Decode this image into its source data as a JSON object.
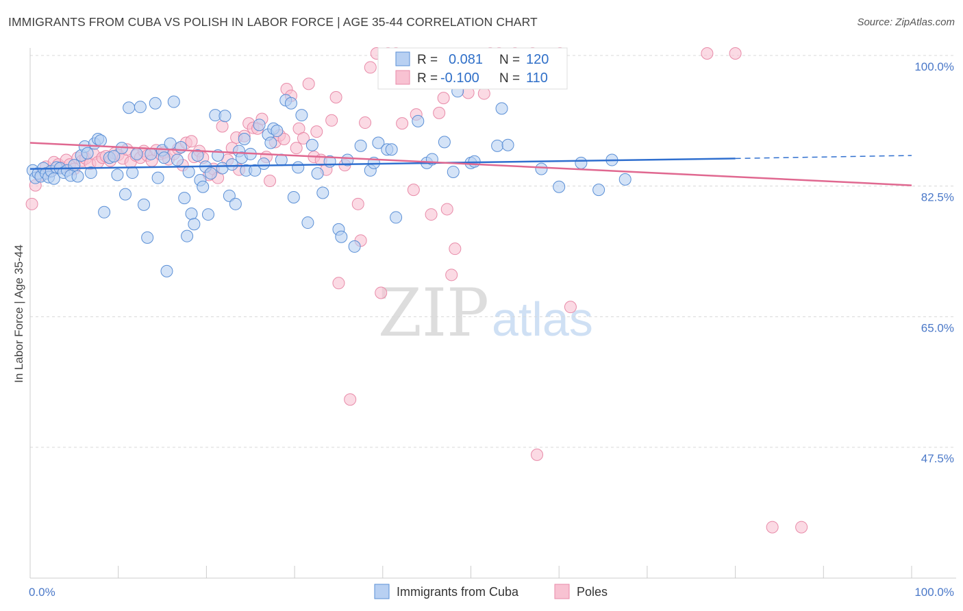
{
  "title": "IMMIGRANTS FROM CUBA VS POLISH IN LABOR FORCE | AGE 35-44 CORRELATION CHART",
  "source": "Source: ZipAtlas.com",
  "watermark": {
    "zip": "ZIP",
    "atlas": "atlas"
  },
  "colors": {
    "cuba_fill": "#b8d0f2",
    "cuba_stroke": "#5a8fd6",
    "cuba_line": "#2f6fcf",
    "poles_fill": "#f8c2d2",
    "poles_stroke": "#e88aa8",
    "poles_line": "#e06890",
    "grid": "#d8d8d8",
    "tick_label": "#4a78c8"
  },
  "chart_data": {
    "type": "scatter",
    "title": "IMMIGRANTS FROM CUBA VS POLISH IN LABOR FORCE | AGE 35-44 CORRELATION CHART",
    "xlabel": "",
    "ylabel": "In Labor Force | Age 35-44",
    "xlim": [
      0,
      100
    ],
    "ylim": [
      30,
      102
    ],
    "x_tick_labels": [
      "0.0%",
      "100.0%"
    ],
    "y_ticks": [
      100.0,
      82.5,
      65.0,
      47.5
    ],
    "y_tick_labels": [
      "100.0%",
      "82.5%",
      "65.0%",
      "47.5%"
    ],
    "grid": true,
    "legend_position": "top-center",
    "legend": {
      "rows": [
        {
          "r_label": "R =",
          "r_value": "0.081",
          "n_label": "N =",
          "n_value": "120"
        },
        {
          "r_label": "R =",
          "r_value": "-0.100",
          "n_label": "N =",
          "n_value": "110"
        }
      ]
    },
    "series": [
      {
        "name": "Immigrants from Cuba",
        "r": 0.081,
        "n": 120,
        "trend": {
          "x": [
            0,
            80
          ],
          "y": [
            84.8,
            86.2
          ],
          "dashed_to": [
            100,
            86.6
          ]
        },
        "points": [
          [
            0.3,
            84.6
          ],
          [
            0.6,
            83.6
          ],
          [
            0.9,
            84.2
          ],
          [
            1.2,
            83.8
          ],
          [
            1.5,
            84.9
          ],
          [
            1.8,
            84.2
          ],
          [
            2.1,
            83.7
          ],
          [
            2.4,
            84.5
          ],
          [
            2.7,
            83.5
          ],
          [
            3.0,
            85.0
          ],
          [
            3.4,
            84.9
          ],
          [
            3.8,
            84.3
          ],
          [
            4.2,
            84.6
          ],
          [
            4.6,
            83.9
          ],
          [
            5.0,
            85.3
          ],
          [
            5.4,
            83.8
          ],
          [
            5.8,
            86.6
          ],
          [
            6.2,
            87.8
          ],
          [
            6.5,
            86.9
          ],
          [
            6.9,
            84.3
          ],
          [
            7.3,
            88.2
          ],
          [
            7.7,
            88.8
          ],
          [
            8.0,
            88.6
          ],
          [
            8.4,
            79.0
          ],
          [
            9.0,
            86.3
          ],
          [
            9.5,
            86.5
          ],
          [
            9.9,
            84.0
          ],
          [
            10.4,
            87.6
          ],
          [
            10.8,
            81.4
          ],
          [
            11.2,
            93.0
          ],
          [
            11.6,
            84.3
          ],
          [
            12.1,
            86.8
          ],
          [
            12.5,
            93.1
          ],
          [
            12.9,
            80.0
          ],
          [
            13.3,
            75.6
          ],
          [
            13.7,
            86.8
          ],
          [
            14.2,
            93.6
          ],
          [
            14.5,
            83.6
          ],
          [
            15.0,
            87.3
          ],
          [
            15.2,
            86.3
          ],
          [
            15.5,
            71.1
          ],
          [
            15.9,
            88.2
          ],
          [
            16.3,
            93.8
          ],
          [
            16.7,
            86.0
          ],
          [
            17.1,
            87.7
          ],
          [
            17.5,
            80.9
          ],
          [
            17.8,
            75.8
          ],
          [
            18.0,
            84.4
          ],
          [
            18.3,
            78.8
          ],
          [
            18.6,
            77.4
          ],
          [
            19.0,
            86.6
          ],
          [
            19.3,
            83.3
          ],
          [
            19.6,
            82.4
          ],
          [
            19.9,
            85.1
          ],
          [
            20.2,
            78.7
          ],
          [
            20.5,
            84.2
          ],
          [
            21.0,
            92.0
          ],
          [
            21.3,
            86.6
          ],
          [
            21.8,
            84.9
          ],
          [
            22.1,
            91.9
          ],
          [
            22.6,
            81.2
          ],
          [
            22.9,
            85.4
          ],
          [
            23.3,
            80.1
          ],
          [
            23.7,
            87.2
          ],
          [
            24.0,
            86.3
          ],
          [
            24.3,
            88.8
          ],
          [
            24.5,
            84.6
          ],
          [
            25.0,
            86.8
          ],
          [
            25.5,
            84.6
          ],
          [
            26.0,
            90.7
          ],
          [
            26.5,
            85.5
          ],
          [
            27.0,
            89.4
          ],
          [
            27.3,
            88.3
          ],
          [
            27.6,
            90.2
          ],
          [
            28.0,
            89.9
          ],
          [
            28.5,
            86.0
          ],
          [
            29.0,
            94.0
          ],
          [
            29.6,
            93.6
          ],
          [
            29.9,
            81.0
          ],
          [
            30.4,
            85.0
          ],
          [
            30.8,
            92.0
          ],
          [
            31.5,
            77.6
          ],
          [
            32.0,
            88.0
          ],
          [
            32.6,
            84.2
          ],
          [
            33.2,
            81.6
          ],
          [
            34.0,
            85.8
          ],
          [
            35.0,
            76.7
          ],
          [
            35.3,
            75.7
          ],
          [
            36.0,
            86.0
          ],
          [
            36.8,
            74.4
          ],
          [
            37.5,
            87.9
          ],
          [
            38.6,
            84.6
          ],
          [
            39.0,
            85.6
          ],
          [
            39.5,
            88.3
          ],
          [
            40.5,
            87.4
          ],
          [
            41.0,
            87.4
          ],
          [
            41.5,
            78.3
          ],
          [
            44.0,
            91.2
          ],
          [
            45.0,
            85.6
          ],
          [
            45.6,
            86.1
          ],
          [
            47.0,
            88.4
          ],
          [
            48.0,
            84.4
          ],
          [
            48.5,
            95.2
          ],
          [
            50.0,
            85.6
          ],
          [
            50.4,
            85.8
          ],
          [
            53.0,
            87.9
          ],
          [
            53.5,
            92.9
          ],
          [
            54.2,
            88.0
          ],
          [
            58.0,
            84.8
          ],
          [
            60.0,
            82.4
          ],
          [
            62.5,
            85.6
          ],
          [
            64.5,
            82.0
          ],
          [
            66.0,
            86.0
          ],
          [
            67.5,
            83.4
          ]
        ]
      },
      {
        "name": "Poles",
        "r": -0.1,
        "n": 110,
        "trend": {
          "x": [
            0,
            100
          ],
          "y": [
            88.3,
            82.6
          ]
        },
        "points": [
          [
            0.2,
            80.1
          ],
          [
            0.6,
            82.6
          ],
          [
            1.2,
            84.0
          ],
          [
            1.8,
            85.1
          ],
          [
            2.3,
            84.5
          ],
          [
            2.7,
            85.7
          ],
          [
            3.2,
            85.4
          ],
          [
            3.6,
            85.0
          ],
          [
            4.1,
            86.0
          ],
          [
            4.5,
            85.4
          ],
          [
            5.0,
            84.8
          ],
          [
            5.4,
            86.3
          ],
          [
            5.9,
            85.9
          ],
          [
            6.3,
            86.2
          ],
          [
            6.8,
            85.5
          ],
          [
            7.2,
            86.8
          ],
          [
            7.7,
            85.7
          ],
          [
            8.2,
            86.3
          ],
          [
            8.6,
            86.5
          ],
          [
            9.1,
            85.9
          ],
          [
            9.6,
            86.9
          ],
          [
            10.0,
            86.7
          ],
          [
            10.5,
            86.2
          ],
          [
            11.0,
            87.4
          ],
          [
            11.4,
            85.7
          ],
          [
            12.0,
            86.6
          ],
          [
            12.5,
            86.3
          ],
          [
            12.9,
            87.2
          ],
          [
            13.3,
            86.6
          ],
          [
            13.8,
            85.9
          ],
          [
            14.3,
            87.3
          ],
          [
            14.8,
            86.8
          ],
          [
            15.2,
            87.0
          ],
          [
            15.7,
            86.1
          ],
          [
            16.3,
            86.8
          ],
          [
            16.8,
            87.5
          ],
          [
            17.3,
            85.3
          ],
          [
            17.7,
            88.3
          ],
          [
            18.3,
            88.5
          ],
          [
            18.6,
            86.4
          ],
          [
            19.2,
            87.2
          ],
          [
            19.6,
            86.3
          ],
          [
            20.3,
            84.0
          ],
          [
            20.8,
            84.8
          ],
          [
            21.3,
            83.6
          ],
          [
            21.8,
            90.5
          ],
          [
            22.4,
            86.0
          ],
          [
            22.9,
            87.6
          ],
          [
            23.4,
            89.0
          ],
          [
            23.7,
            84.7
          ],
          [
            24.3,
            89.2
          ],
          [
            24.8,
            90.9
          ],
          [
            25.3,
            90.3
          ],
          [
            25.8,
            90.2
          ],
          [
            26.3,
            91.5
          ],
          [
            26.8,
            86.4
          ],
          [
            27.2,
            83.2
          ],
          [
            27.8,
            88.4
          ],
          [
            28.3,
            89.3
          ],
          [
            28.8,
            88.8
          ],
          [
            29.1,
            95.5
          ],
          [
            29.6,
            94.6
          ],
          [
            30.2,
            87.6
          ],
          [
            30.5,
            90.2
          ],
          [
            31.0,
            88.9
          ],
          [
            31.6,
            96.2
          ],
          [
            32.2,
            86.4
          ],
          [
            32.5,
            89.8
          ],
          [
            33.0,
            86.0
          ],
          [
            33.6,
            84.7
          ],
          [
            34.2,
            91.3
          ],
          [
            34.7,
            94.4
          ],
          [
            35.0,
            69.5
          ],
          [
            35.7,
            85.3
          ],
          [
            36.3,
            53.9
          ],
          [
            37.2,
            80.1
          ],
          [
            37.5,
            75.2
          ],
          [
            38.0,
            91.0
          ],
          [
            38.6,
            98.4
          ],
          [
            39.3,
            102.0
          ],
          [
            39.8,
            68.2
          ],
          [
            40.6,
            101.9
          ],
          [
            41.5,
            102.0
          ],
          [
            42.2,
            90.9
          ],
          [
            43.0,
            98.3
          ],
          [
            43.5,
            82.0
          ],
          [
            43.8,
            92.1
          ],
          [
            44.5,
            96.5
          ],
          [
            45.5,
            78.7
          ],
          [
            46.4,
            92.3
          ],
          [
            46.9,
            94.3
          ],
          [
            47.3,
            79.4
          ],
          [
            47.8,
            70.6
          ],
          [
            48.2,
            74.1
          ],
          [
            49.7,
            95.0
          ],
          [
            50.6,
            97.6
          ],
          [
            51.5,
            94.9
          ],
          [
            52.2,
            102.0
          ],
          [
            53.2,
            102.0
          ],
          [
            55.0,
            102.0
          ],
          [
            57.0,
            102.0
          ],
          [
            57.5,
            46.5
          ],
          [
            60.1,
            102.0
          ],
          [
            61.3,
            66.3
          ],
          [
            76.8,
            102.0
          ],
          [
            80.0,
            102.0
          ],
          [
            84.2,
            36.8
          ],
          [
            87.5,
            36.8
          ]
        ]
      }
    ],
    "x_axis_label_left": "0.0%",
    "x_axis_label_right": "100.0%"
  },
  "bottom_legend": {
    "items": [
      {
        "label": "Immigrants from Cuba"
      },
      {
        "label": "Poles"
      }
    ]
  }
}
